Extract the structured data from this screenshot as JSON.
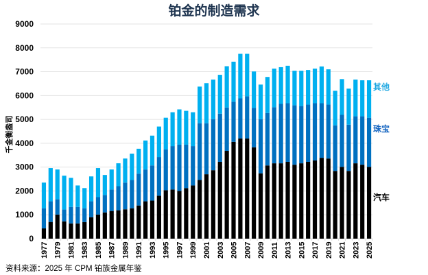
{
  "chart_data": {
    "type": "bar",
    "stacked": true,
    "title": "铂金的制造需求",
    "ylabel": "千金衡盎司",
    "xlabel": "",
    "ylim": [
      0,
      9000
    ],
    "yticks": [
      0,
      1000,
      2000,
      3000,
      4000,
      5000,
      6000,
      7000,
      8000,
      9000
    ],
    "grid": true,
    "legend": "right-inline",
    "categories": [
      "1977",
      "1978",
      "1979",
      "1980",
      "1981",
      "1982",
      "1983",
      "1984",
      "1985",
      "1986",
      "1987",
      "1988",
      "1989",
      "1990",
      "1991",
      "1992",
      "1993",
      "1994",
      "1995",
      "1996",
      "1997",
      "1998",
      "1999",
      "2000",
      "2001",
      "2002",
      "2003",
      "2004",
      "2005",
      "2006",
      "2007",
      "2008",
      "2009",
      "2010",
      "2011",
      "2012",
      "2013",
      "2014",
      "2015",
      "2016",
      "2017",
      "2018",
      "2019",
      "2020",
      "2021",
      "2022",
      "2023",
      "2024",
      "2025"
    ],
    "xtick_labels": [
      "1977",
      "1979",
      "1981",
      "1983",
      "1985",
      "1987",
      "1989",
      "1991",
      "1993",
      "1995",
      "1997",
      "1999",
      "2001",
      "2003",
      "2005",
      "2007",
      "2009",
      "2011",
      "2013",
      "2015",
      "2017",
      "2019",
      "2021",
      "2023",
      "2025"
    ],
    "series": [
      {
        "name": "汽车",
        "color": "#000000",
        "values": [
          430,
          700,
          1010,
          725,
          640,
          640,
          695,
          900,
          1010,
          1100,
          1160,
          1190,
          1230,
          1275,
          1390,
          1565,
          1595,
          1800,
          2030,
          2060,
          2000,
          2120,
          2230,
          2460,
          2700,
          2870,
          3220,
          3680,
          4060,
          4200,
          4200,
          3830,
          2740,
          3070,
          3160,
          3160,
          3220,
          3100,
          3160,
          3220,
          3280,
          3390,
          3360,
          2840,
          3010,
          2840,
          3160,
          3100,
          3010
        ]
      },
      {
        "name": "珠宝",
        "color": "#0070c0",
        "values": [
          845,
          865,
          640,
          495,
          690,
          690,
          580,
          665,
          730,
          730,
          900,
          1010,
          1120,
          1185,
          1335,
          1335,
          1475,
          1620,
          1710,
          1820,
          1940,
          1820,
          1650,
          2380,
          2140,
          2140,
          2020,
          1820,
          1680,
          1680,
          1770,
          1650,
          2270,
          2200,
          2350,
          2490,
          2460,
          2490,
          2400,
          2400,
          2400,
          2290,
          2260,
          1910,
          2180,
          1940,
          1970,
          2030,
          2060
        ]
      },
      {
        "name": "其他",
        "color": "#00b0f0",
        "values": [
          1075,
          1395,
          1250,
          1420,
          1220,
          900,
          845,
          1045,
          1220,
          840,
          840,
          960,
          1010,
          1105,
          1045,
          1215,
          1250,
          1280,
          1330,
          1420,
          1480,
          1420,
          1420,
          1535,
          1680,
          1660,
          1630,
          1730,
          1680,
          1870,
          1780,
          1530,
          1450,
          1510,
          1620,
          1540,
          1570,
          1450,
          1480,
          1450,
          1450,
          1540,
          1480,
          1450,
          1500,
          1510,
          1540,
          1510,
          1570
        ]
      }
    ],
    "series_labels": [
      {
        "text": "其他",
        "color": "#1ea7e1"
      },
      {
        "text": "珠宝",
        "color": "#1565c0"
      },
      {
        "text": "汽车",
        "color": "#000000"
      }
    ]
  },
  "source": "资料来源：2025 年 CPM 铂族金属年鉴"
}
